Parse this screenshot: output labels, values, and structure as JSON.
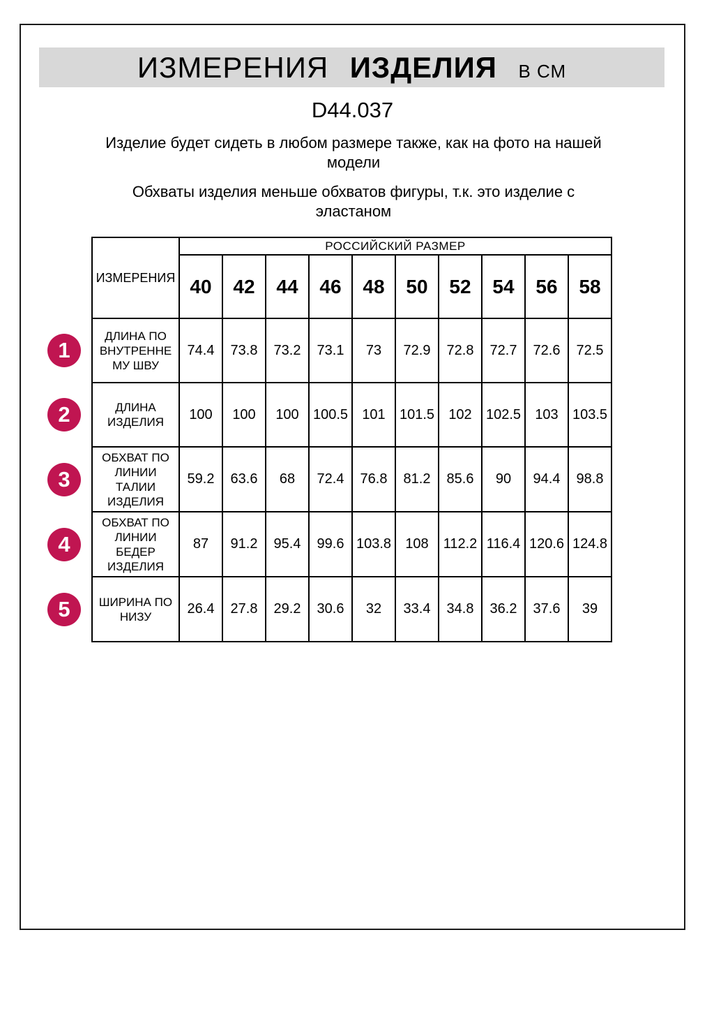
{
  "header": {
    "title_measurements": "ИЗМЕРЕНИЯ",
    "title_product": "ИЗДЕЛИЯ",
    "title_units": "В СМ",
    "product_code": "D44.037",
    "fit_note_lines": [
      "Изделие будет сидеть в любом размере также, как на фото на нашей",
      "модели"
    ],
    "stretch_note_lines": [
      "Обхваты изделия меньше обхватов фигуры, т.к. это изделие с",
      "эластаном"
    ]
  },
  "table": {
    "corner_label": "ИЗМЕРЕНИЯ",
    "size_system_label": "РОССИЙСКИЙ РАЗМЕР",
    "sizes": [
      "40",
      "42",
      "44",
      "46",
      "48",
      "50",
      "52",
      "54",
      "56",
      "58"
    ],
    "rows": [
      {
        "num": "1",
        "label_lines": [
          "ДЛИНА ПО",
          "ВНУТРЕННЕ",
          "МУ ШВУ"
        ],
        "values": [
          "74.4",
          "73.8",
          "73.2",
          "73.1",
          "73",
          "72.9",
          "72.8",
          "72.7",
          "72.6",
          "72.5"
        ]
      },
      {
        "num": "2",
        "label_lines": [
          "ДЛИНА",
          "ИЗДЕЛИЯ"
        ],
        "values": [
          "100",
          "100",
          "100",
          "100.5",
          "101",
          "101.5",
          "102",
          "102.5",
          "103",
          "103.5"
        ]
      },
      {
        "num": "3",
        "label_lines": [
          "ОБХВАТ ПО",
          "ЛИНИИ",
          "ТАЛИИ",
          "ИЗДЕЛИЯ"
        ],
        "values": [
          "59.2",
          "63.6",
          "68",
          "72.4",
          "76.8",
          "81.2",
          "85.6",
          "90",
          "94.4",
          "98.8"
        ]
      },
      {
        "num": "4",
        "label_lines": [
          "ОБХВАТ ПО",
          "ЛИНИИ",
          "БЕДЕР",
          "ИЗДЕЛИЯ"
        ],
        "values": [
          "87",
          "91.2",
          "95.4",
          "99.6",
          "103.8",
          "108",
          "112.2",
          "116.4",
          "120.6",
          "124.8"
        ]
      },
      {
        "num": "5",
        "label_lines": [
          "ШИРИНА ПО",
          "НИЗУ"
        ],
        "values": [
          "26.4",
          "27.8",
          "29.2",
          "30.6",
          "32",
          "33.4",
          "34.8",
          "36.2",
          "37.6",
          "39"
        ]
      }
    ]
  },
  "colors": {
    "badge_background": "#C01551",
    "badge_number": "#FFFFFF",
    "title_bar_background": "#D8D8D8",
    "table_border": "#000000"
  }
}
